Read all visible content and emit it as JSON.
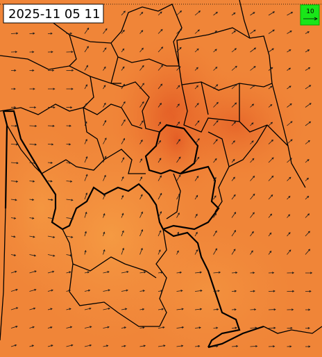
{
  "timestamp": "2025-11 05 11",
  "legend": {
    "label": "10"
  }
}
